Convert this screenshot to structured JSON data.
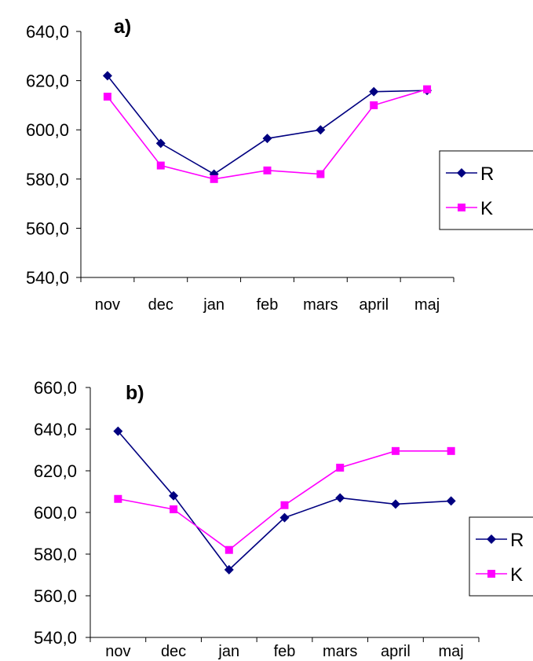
{
  "chart_data": [
    {
      "type": "line",
      "title": "a)",
      "categories": [
        "nov",
        "dec",
        "jan",
        "feb",
        "mars",
        "april",
        "maj"
      ],
      "series": [
        {
          "name": "R",
          "values": [
            622.0,
            594.5,
            582.0,
            596.5,
            600.0,
            615.5,
            616.0
          ]
        },
        {
          "name": "K",
          "values": [
            613.5,
            585.5,
            580.0,
            583.5,
            582.0,
            610.0,
            616.5
          ]
        }
      ],
      "ylim": [
        540,
        640
      ],
      "yticks": [
        "540,0",
        "560,0",
        "580,0",
        "600,0",
        "620,0",
        "640,0"
      ],
      "legend": "right",
      "grid": false
    },
    {
      "type": "line",
      "title": "b)",
      "categories": [
        "nov",
        "dec",
        "jan",
        "feb",
        "mars",
        "april",
        "maj"
      ],
      "series": [
        {
          "name": "R",
          "values": [
            639.0,
            608.0,
            572.5,
            597.5,
            607.0,
            604.0,
            605.5
          ]
        },
        {
          "name": "K",
          "values": [
            606.5,
            601.5,
            582.0,
            603.5,
            621.5,
            629.5,
            629.5
          ]
        }
      ],
      "ylim": [
        540,
        660
      ],
      "yticks": [
        "540,0",
        "560,0",
        "580,0",
        "600,0",
        "620,0",
        "640,0",
        "660,0"
      ],
      "legend": "right",
      "grid": false
    }
  ],
  "colors": {
    "R": "#000080",
    "K": "#FF00FF"
  }
}
